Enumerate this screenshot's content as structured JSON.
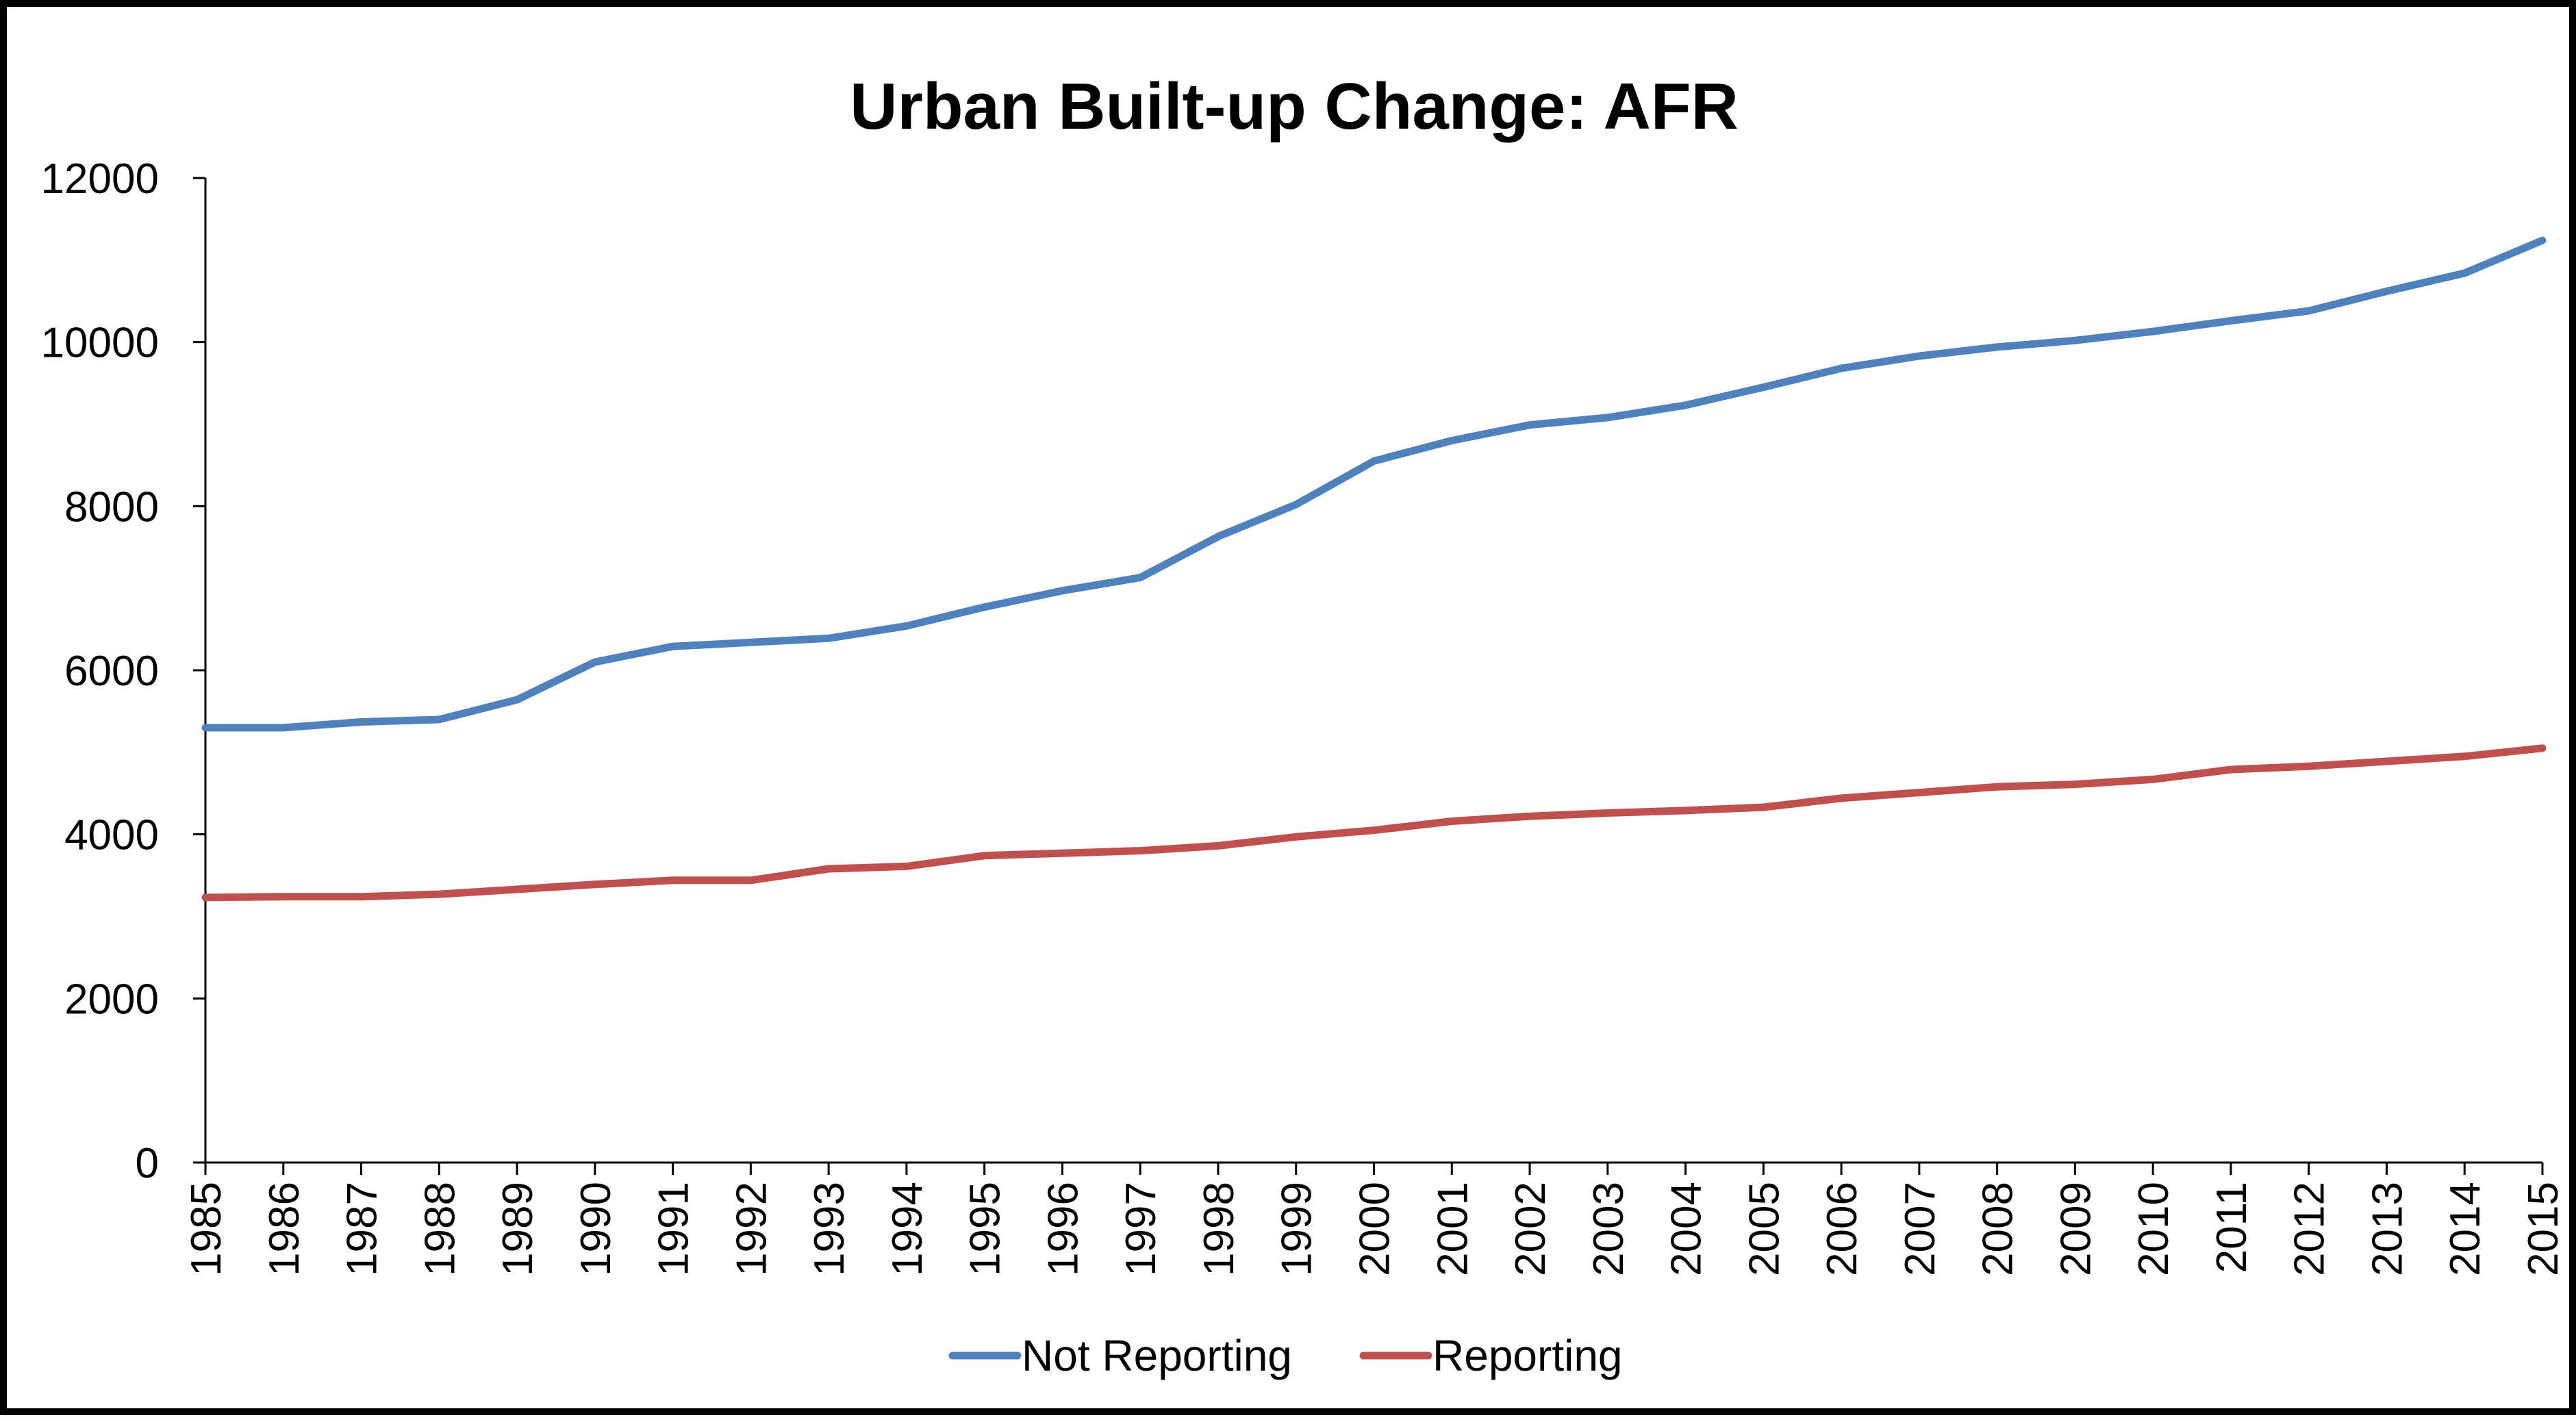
{
  "chart_data": {
    "type": "line",
    "title": "Urban Built-up Change: AFR",
    "xlabel": "",
    "ylabel": "",
    "x": [
      "1985",
      "1986",
      "1987",
      "1988",
      "1989",
      "1990",
      "1991",
      "1992",
      "1993",
      "1994",
      "1995",
      "1996",
      "1997",
      "1998",
      "1999",
      "2000",
      "2001",
      "2002",
      "2003",
      "2004",
      "2005",
      "2006",
      "2007",
      "2008",
      "2009",
      "2010",
      "2011",
      "2012",
      "2013",
      "2014",
      "2015"
    ],
    "ylim": [
      0,
      12000
    ],
    "yticks": [
      "0",
      "2000",
      "4000",
      "6000",
      "8000",
      "10000",
      "12000"
    ],
    "grid": false,
    "legend": "bottom",
    "series": [
      {
        "name": "Not Reporting",
        "color": "#4F81BD",
        "values": [
          5300,
          5300,
          5370,
          5400,
          5640,
          6100,
          6290,
          6340,
          6390,
          6540,
          6770,
          6970,
          7130,
          7630,
          8020,
          8550,
          8800,
          8990,
          9080,
          9230,
          9450,
          9680,
          9830,
          9940,
          10020,
          10130,
          10260,
          10380,
          10620,
          10840,
          11240
        ]
      },
      {
        "name": "Reporting",
        "color": "#C0504D",
        "values": [
          3230,
          3240,
          3240,
          3270,
          3330,
          3390,
          3440,
          3440,
          3580,
          3610,
          3740,
          3770,
          3800,
          3860,
          3970,
          4050,
          4160,
          4220,
          4260,
          4290,
          4330,
          4440,
          4510,
          4580,
          4610,
          4670,
          4790,
          4830,
          4890,
          4950,
          5050
        ]
      }
    ]
  }
}
